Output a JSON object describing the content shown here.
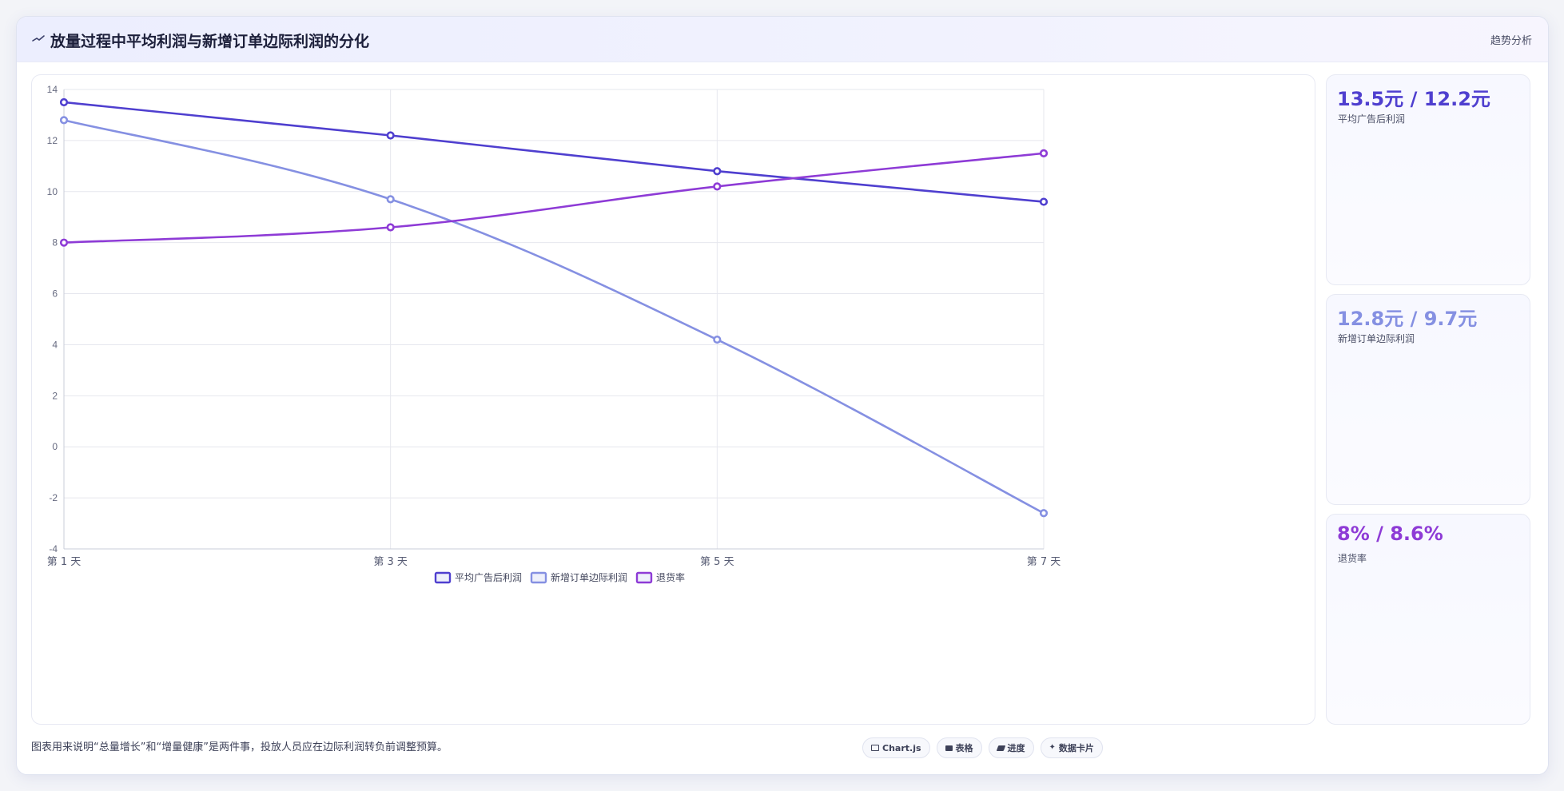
{
  "header": {
    "title": "放量过程中平均利润与新增订单边际利润的分化",
    "tag": "趋势分析"
  },
  "chart_data": {
    "type": "line",
    "categories": [
      "第 1 天",
      "第 3 天",
      "第 5 天",
      "第 7 天"
    ],
    "ylim": [
      -4,
      14
    ],
    "yticks": [
      -4,
      -2,
      0,
      2,
      4,
      6,
      8,
      10,
      12,
      14
    ],
    "grid": true,
    "legend_position": "bottom",
    "series": [
      {
        "name": "平均广告后利润",
        "values": [
          13.5,
          12.2,
          10.8,
          9.6
        ],
        "color": "#4f3fcf",
        "smooth": false
      },
      {
        "name": "新增订单边际利润",
        "values": [
          12.8,
          9.7,
          4.2,
          -2.6
        ],
        "color": "#8590e2",
        "smooth": true
      },
      {
        "name": "退货率",
        "values": [
          8.0,
          8.6,
          10.2,
          11.5
        ],
        "color": "#8e3bd6",
        "smooth": true
      }
    ]
  },
  "stats": [
    {
      "value": "13.5元 / 12.2元",
      "label": "平均广告后利润",
      "color": "#4f3fcf"
    },
    {
      "value": "12.8元 / 9.7元",
      "label": "新增订单边际利润",
      "color": "#8590e2"
    },
    {
      "value": "8% / 8.6%",
      "label": "退货率",
      "color": "#8e3bd6"
    }
  ],
  "footer": {
    "note": "图表用来说明“总量增长”和“增量健康”是两件事，投放人员应在边际利润转负前调整预算。",
    "chips": [
      {
        "label": "Chart.js",
        "icon": "chart-icon"
      },
      {
        "label": "表格",
        "icon": "table-icon"
      },
      {
        "label": "进度",
        "icon": "progress-icon"
      },
      {
        "label": "数据卡片",
        "icon": "sparkle-icon"
      }
    ]
  }
}
